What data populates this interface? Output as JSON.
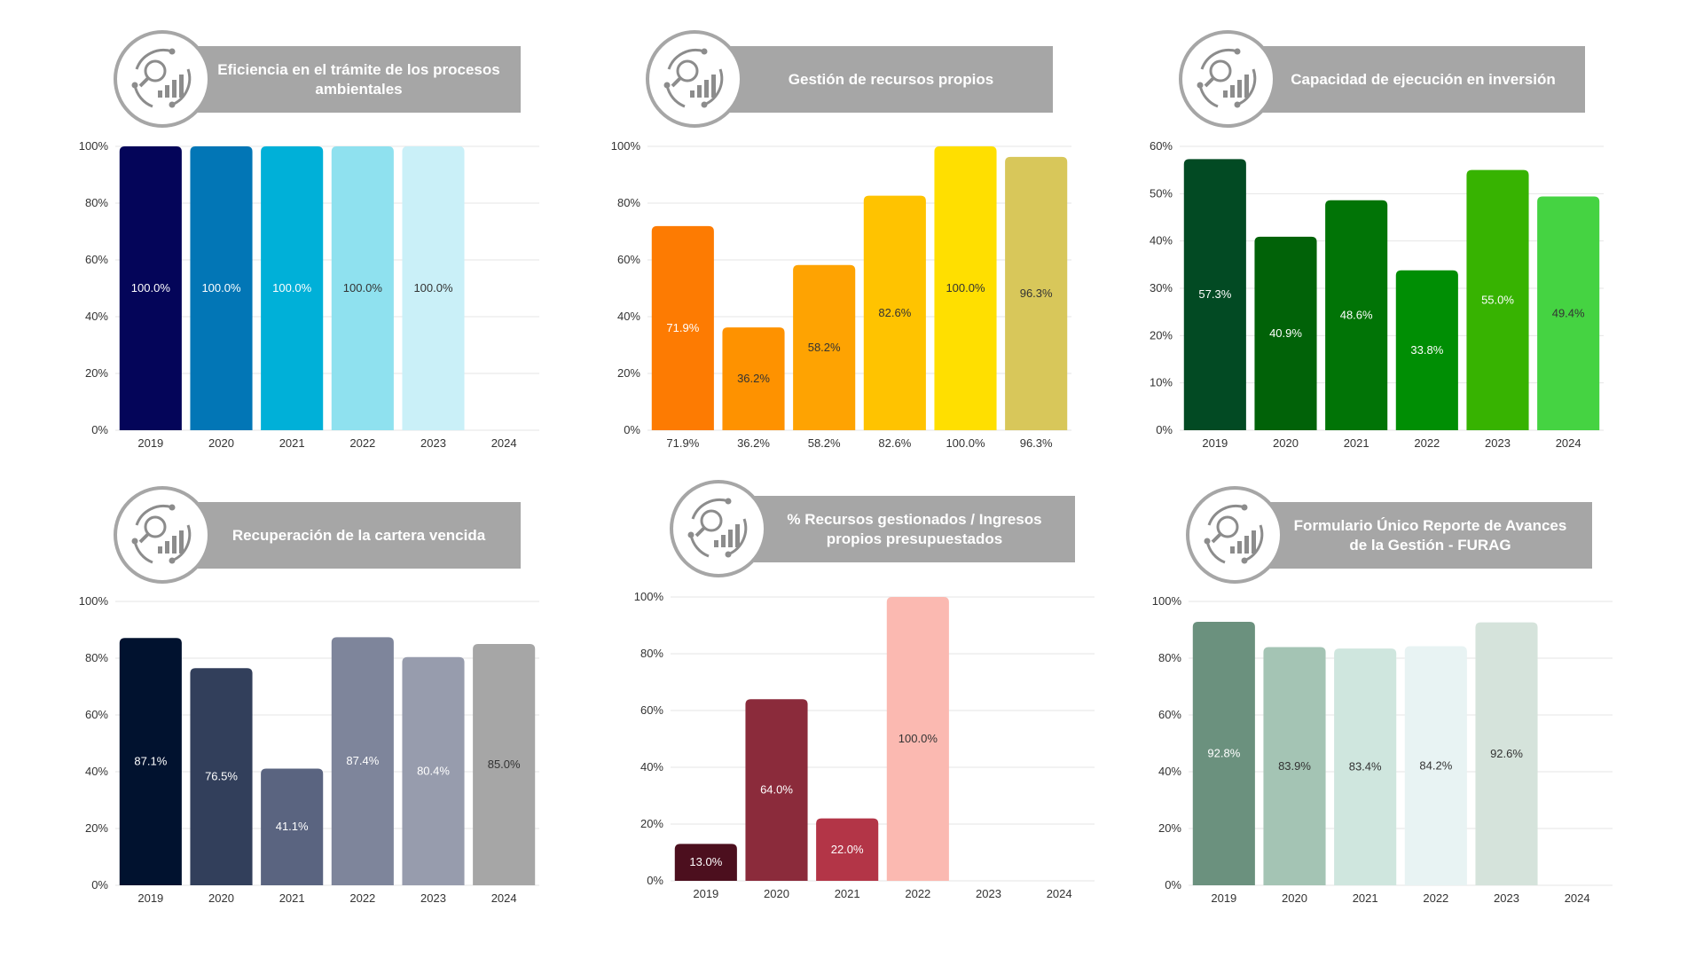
{
  "colors": {
    "banner": "#a6a6a6",
    "banner_text": "#ffffff",
    "grid": "#e6e6e6",
    "axis_text": "#333333"
  },
  "icons": {
    "panel_emblem": "analytics-cycle-icon"
  },
  "chart_data": [
    {
      "type": "bar",
      "title_lines": [
        "Eficiencia en el trámite de los procesos",
        "ambientales"
      ],
      "categories": [
        "2019",
        "2020",
        "2021",
        "2022",
        "2023",
        "2024"
      ],
      "values": [
        100.0,
        100.0,
        100.0,
        100.0,
        100.0,
        null
      ],
      "value_labels": [
        "100.0%",
        "100.0%",
        "100.0%",
        "100.0%",
        "100.0%",
        ""
      ],
      "colors": [
        "#040559",
        "#0276b6",
        "#00b0d8",
        "#8fe1ef",
        "#caf0f8",
        ""
      ],
      "label_colors": [
        "#ffffff",
        "#ffffff",
        "#ffffff",
        "#333333",
        "#333333",
        ""
      ],
      "ylim": [
        0,
        100
      ],
      "yticks": [
        "0%",
        "20%",
        "40%",
        "60%",
        "80%",
        "100%"
      ],
      "grid": true
    },
    {
      "type": "bar",
      "title_lines": [
        "Gestión de recursos propios"
      ],
      "categories": [
        "71.9%",
        "36.2%",
        "58.2%",
        "82.6%",
        "100.0%",
        "96.3%"
      ],
      "values": [
        71.9,
        36.2,
        58.2,
        82.6,
        100.0,
        96.3
      ],
      "value_labels": [
        "71.9%",
        "36.2%",
        "58.2%",
        "82.6%",
        "100.0%",
        "96.3%"
      ],
      "colors": [
        "#fd7b02",
        "#fe9200",
        "#fea302",
        "#ffc300",
        "#ffdf00",
        "#d8c75a"
      ],
      "label_colors": [
        "#ffffff",
        "#333333",
        "#333333",
        "#333333",
        "#333333",
        "#333333"
      ],
      "ylim": [
        0,
        100
      ],
      "yticks": [
        "0%",
        "20%",
        "40%",
        "60%",
        "80%",
        "100%"
      ],
      "grid": true
    },
    {
      "type": "bar",
      "title_lines": [
        "Capacidad de ejecución en inversión"
      ],
      "categories": [
        "2019",
        "2020",
        "2021",
        "2022",
        "2023",
        "2024"
      ],
      "values": [
        57.3,
        40.9,
        48.6,
        33.8,
        55.0,
        49.4
      ],
      "value_labels": [
        "57.3%",
        "40.9%",
        "48.6%",
        "33.8%",
        "55.0%",
        "49.4%"
      ],
      "colors": [
        "#024a23",
        "#016208",
        "#017406",
        "#008e04",
        "#37b301",
        "#45d342"
      ],
      "label_colors": [
        "#ffffff",
        "#ffffff",
        "#ffffff",
        "#ffffff",
        "#ffffff",
        "#333333"
      ],
      "ylim": [
        0,
        60
      ],
      "yticks": [
        "0%",
        "10%",
        "20%",
        "30%",
        "40%",
        "50%",
        "60%"
      ],
      "grid": true
    },
    {
      "type": "bar",
      "title_lines": [
        "Recuperación de la cartera vencida"
      ],
      "categories": [
        "2019",
        "2020",
        "2021",
        "2022",
        "2023",
        "2024"
      ],
      "values": [
        87.1,
        76.5,
        41.1,
        87.4,
        80.4,
        85.0
      ],
      "value_labels": [
        "87.1%",
        "76.5%",
        "41.1%",
        "87.4%",
        "80.4%",
        "85.0%"
      ],
      "colors": [
        "#01122f",
        "#323f5b",
        "#5a6480",
        "#7e859b",
        "#979cad",
        "#a6a6a6"
      ],
      "label_colors": [
        "#ffffff",
        "#ffffff",
        "#ffffff",
        "#ffffff",
        "#ffffff",
        "#333333"
      ],
      "ylim": [
        0,
        100
      ],
      "yticks": [
        "0%",
        "20%",
        "40%",
        "60%",
        "80%",
        "100%"
      ],
      "grid": true
    },
    {
      "type": "bar",
      "title_lines": [
        "% Recursos gestionados / Ingresos",
        "propios presupuestados"
      ],
      "categories": [
        "2019",
        "2020",
        "2021",
        "2022",
        "2023",
        "2024"
      ],
      "values": [
        13.0,
        64.0,
        22.0,
        100.0,
        null,
        null
      ],
      "value_labels": [
        "13.0%",
        "64.0%",
        "22.0%",
        "100.0%",
        "",
        ""
      ],
      "colors": [
        "#4c0f1e",
        "#8b2b3b",
        "#b33547",
        "#fbb9b1",
        "",
        ""
      ],
      "label_colors": [
        "#ffffff",
        "#ffffff",
        "#ffffff",
        "#333333",
        "",
        ""
      ],
      "ylim": [
        0,
        100
      ],
      "yticks": [
        "0%",
        "20%",
        "40%",
        "60%",
        "80%",
        "100%"
      ],
      "grid": true
    },
    {
      "type": "bar",
      "title_lines": [
        "Formulario Único Reporte de Avances",
        "de la Gestión - FURAG"
      ],
      "categories": [
        "2019",
        "2020",
        "2021",
        "2022",
        "2023",
        "2024"
      ],
      "values": [
        92.8,
        83.9,
        83.4,
        84.2,
        92.6,
        null
      ],
      "value_labels": [
        "92.8%",
        "83.9%",
        "83.4%",
        "84.2%",
        "92.6%",
        ""
      ],
      "colors": [
        "#6b917e",
        "#a4c4b4",
        "#cfe6de",
        "#e8f3f3",
        "#d5e3db",
        ""
      ],
      "label_colors": [
        "#ffffff",
        "#333333",
        "#333333",
        "#333333",
        "#333333",
        ""
      ],
      "ylim": [
        0,
        100
      ],
      "yticks": [
        "0%",
        "20%",
        "40%",
        "60%",
        "80%",
        "100%"
      ],
      "grid": true
    }
  ]
}
